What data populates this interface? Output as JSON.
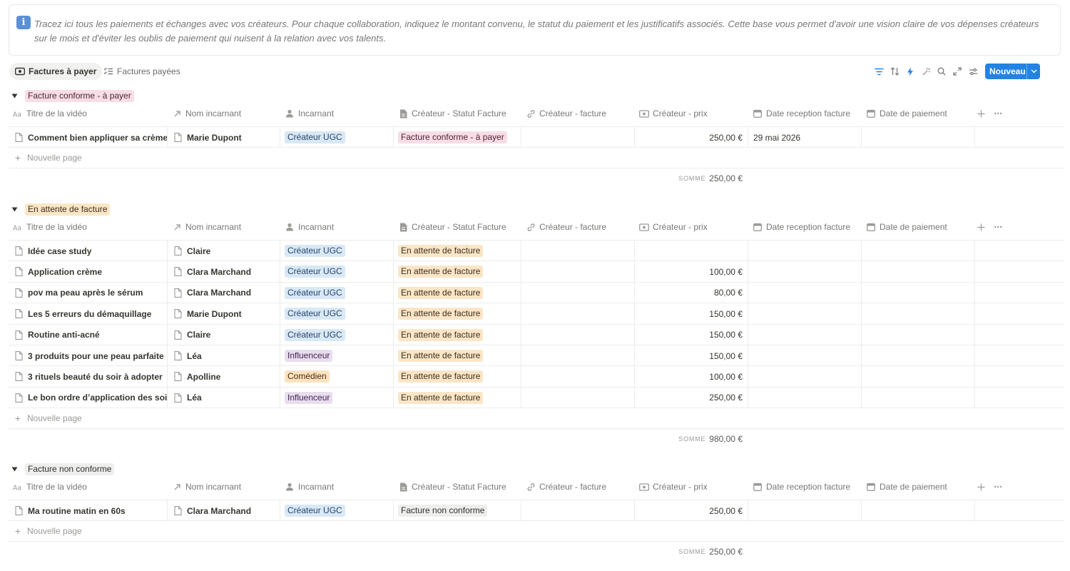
{
  "callout": {
    "icon": "info-icon",
    "text": "Tracez ici tous les paiements et échanges avec vos créateurs. Pour chaque collaboration, indiquez le montant convenu, le statut du paiement et les justificatifs associés. Cette base vous permet d'avoir une vision claire de vos dépenses créateurs sur le mois et d'éviter les oublis de paiement qui nuisent à la relation avec vos talents."
  },
  "views": [
    {
      "label": "Factures à payer",
      "icon": "money-icon",
      "active": true
    },
    {
      "label": "Factures payées",
      "icon": "checklist-icon",
      "active": false
    }
  ],
  "toolbar": {
    "icons": [
      "filter-icon",
      "sort-icon",
      "automation-icon",
      "wand-icon",
      "search-icon",
      "expand-icon",
      "settings-icon"
    ],
    "new_label": "Nouveau"
  },
  "columns": [
    {
      "label": "Titre de la vidéo",
      "icon": "text-type-icon"
    },
    {
      "label": "Nom incarnant",
      "icon": "relation-arrow-icon"
    },
    {
      "label": "Incarnant",
      "icon": "person-icon"
    },
    {
      "label": "Créateur - Statut Facture",
      "icon": "document-icon"
    },
    {
      "label": "Créateur - facture",
      "icon": "link-icon"
    },
    {
      "label": "Créateur - prix",
      "icon": "money-icon"
    },
    {
      "label": "Date reception facture",
      "icon": "calendar-icon"
    },
    {
      "label": "Date de paiement",
      "icon": "calendar-icon"
    }
  ],
  "new_page_label": "Nouvelle page",
  "sum_label": "SOMME",
  "groups": [
    {
      "status": "Facture conforme - à payer",
      "color": "#f9dde6",
      "rows": [
        {
          "title": "Comment bien appliquer sa crème",
          "name": "Marie Dupont",
          "role": "Créateur UGC",
          "status": "Facture conforme - à payer",
          "invoice": "",
          "price": "250,00 €",
          "received": "29 mai 2026",
          "paid": ""
        }
      ],
      "sum": "250,00 €"
    },
    {
      "status": "En attente de facture",
      "color": "#fae6c7",
      "rows": [
        {
          "title": "Idée case study",
          "name": "Claire",
          "role": "Créateur UGC",
          "status": "En attente de facture",
          "invoice": "",
          "price": "",
          "received": "",
          "paid": ""
        },
        {
          "title": "Application crème",
          "name": "Clara Marchand",
          "role": "Créateur UGC",
          "status": "En attente de facture",
          "invoice": "",
          "price": "100,00 €",
          "received": "",
          "paid": ""
        },
        {
          "title": "pov ma peau après le sérum",
          "name": "Clara Marchand",
          "role": "Créateur UGC",
          "status": "En attente de facture",
          "invoice": "",
          "price": "80,00 €",
          "received": "",
          "paid": ""
        },
        {
          "title": "Les 5 erreurs du démaquillage",
          "name": "Marie Dupont",
          "role": "Créateur UGC",
          "status": "En attente de facture",
          "invoice": "",
          "price": "150,00 €",
          "received": "",
          "paid": ""
        },
        {
          "title": "Routine anti-acné",
          "name": "Claire",
          "role": "Créateur UGC",
          "status": "En attente de facture",
          "invoice": "",
          "price": "150,00 €",
          "received": "",
          "paid": ""
        },
        {
          "title": "3 produits pour une peau parfaite",
          "name": "Léa",
          "role": "Influenceur",
          "status": "En attente de facture",
          "invoice": "",
          "price": "150,00 €",
          "received": "",
          "paid": ""
        },
        {
          "title": "3 rituels beauté du soir à adopter",
          "name": "Apolline",
          "role": "Comédien",
          "status": "En attente de facture",
          "invoice": "",
          "price": "100,00 €",
          "received": "",
          "paid": ""
        },
        {
          "title": "Le bon ordre d’application des soins",
          "name": "Léa",
          "role": "Influenceur",
          "status": "En attente de facture",
          "invoice": "",
          "price": "250,00 €",
          "received": "",
          "paid": ""
        }
      ],
      "sum": "980,00 €"
    },
    {
      "status": "Facture non conforme",
      "color": "#eeeeed",
      "rows": [
        {
          "title": "Ma routine matin en 60s",
          "name": "Clara Marchand",
          "role": "Créateur UGC",
          "status": "Facture non conforme",
          "invoice": "",
          "price": "250,00 €",
          "received": "",
          "paid": ""
        }
      ],
      "sum": "250,00 €"
    }
  ]
}
